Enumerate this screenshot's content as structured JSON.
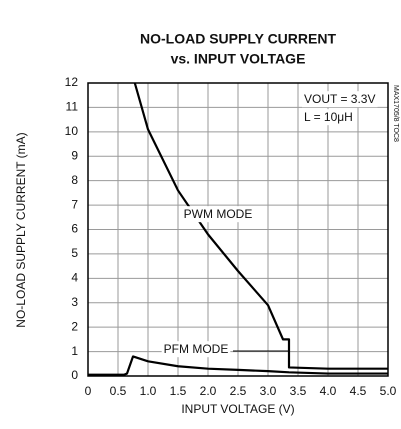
{
  "chart_data": {
    "type": "line",
    "title": "NO-LOAD SUPPLY CURRENT",
    "subtitle": "vs. INPUT VOLTAGE",
    "x_label": "INPUT VOLTAGE (V)",
    "y_label": "NO-LOAD SUPPLY CURRENT (mA)",
    "side_note": "MAX1705/8 TOC8",
    "annotations": [
      "PWM MODE",
      "PFM MODE",
      "VOUT = 3.3V",
      "L = 10μH"
    ],
    "xlim": [
      0,
      5
    ],
    "ylim": [
      0,
      12
    ],
    "xticks": [
      0,
      0.5,
      {
        "value": 1,
        "label": "1.0"
      },
      1.5,
      {
        "value": 2,
        "label": "2.0"
      },
      2.5,
      {
        "value": 3,
        "label": "3.0"
      },
      3.5,
      {
        "value": 4,
        "label": "4.0"
      },
      4.5,
      {
        "value": 5,
        "label": "5.0"
      }
    ],
    "yticks": [
      0,
      1,
      2,
      3,
      4,
      5,
      6,
      7,
      8,
      9,
      10,
      11,
      12
    ],
    "grid": true,
    "series": [
      {
        "name": "PWM MODE",
        "color": "#000000",
        "x": [
          0.78,
          1,
          1.5,
          2,
          2.5,
          3,
          3.25,
          3.35,
          3.35,
          4,
          5
        ],
        "values": [
          12,
          10.1,
          7.6,
          5.8,
          4.3,
          2.9,
          1.5,
          1.5,
          0.35,
          0.3,
          0.3
        ]
      },
      {
        "name": "PFM MODE",
        "color": "#000000",
        "x": [
          0,
          0.6,
          0.65,
          0.75,
          1,
          1.5,
          2,
          2.5,
          3,
          3.35,
          4,
          5
        ],
        "values": [
          0.05,
          0.05,
          0.1,
          0.8,
          0.6,
          0.4,
          0.3,
          0.25,
          0.2,
          0.15,
          0.1,
          0.1
        ]
      }
    ]
  }
}
